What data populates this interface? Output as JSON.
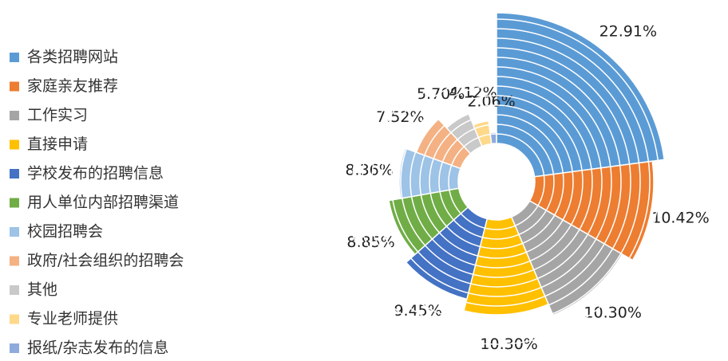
{
  "chart_data": {
    "type": "rose",
    "categories": [
      "各类招聘网站",
      "家庭亲友推荐",
      "工作实习",
      "直接申请",
      "学校发布的招聘信息",
      "用人单位内部招聘渠道",
      "校园招聘会",
      "政府/社会组织的招聘会",
      "其他",
      "专业老师提供",
      "报纸/杂志发布的信息"
    ],
    "values": [
      22.91,
      10.42,
      10.3,
      10.3,
      9.45,
      8.85,
      8.36,
      7.52,
      5.7,
      4.12,
      2.06
    ],
    "value_labels": [
      "22.91%",
      "10.42%",
      "10.30%",
      "10.30%",
      "9.45%",
      "8.85%",
      "8.36%",
      "7.52%",
      "5.70%",
      "4.12%",
      "2.06%"
    ],
    "colors": [
      "#5b9bd5",
      "#ed7d31",
      "#a5a5a5",
      "#ffc000",
      "#4472c4",
      "#70ad47",
      "#9dc3e6",
      "#f4b183",
      "#c9c9c9",
      "#ffd98a",
      "#8faadc"
    ],
    "legend": "left"
  }
}
